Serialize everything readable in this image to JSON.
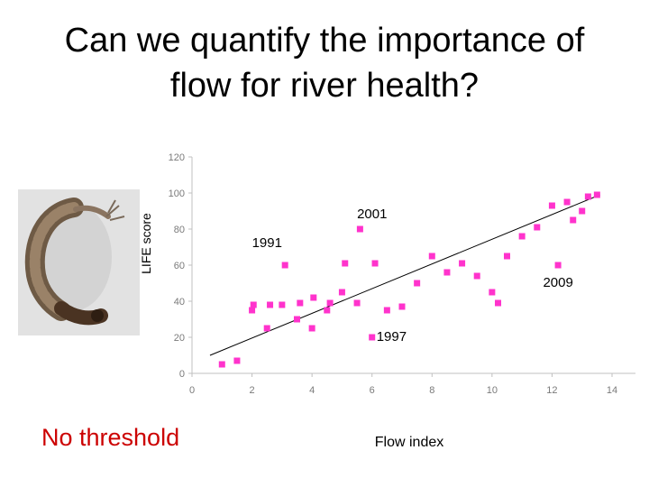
{
  "title": {
    "line1": "Can we quantify the importance of",
    "line2": "flow for river health?"
  },
  "left_caption": "No threshold",
  "colors": {
    "point": "#ff33cc",
    "caption": "#cc0000",
    "axis": "#c0c0c0"
  },
  "chart_data": {
    "type": "scatter",
    "xlabel": "Flow index",
    "ylabel": "LIFE score",
    "xlim": [
      0,
      14
    ],
    "ylim": [
      0,
      120
    ],
    "xticks": [
      0,
      2,
      4,
      6,
      8,
      10,
      12,
      14
    ],
    "yticks": [
      0,
      20,
      40,
      60,
      80,
      100,
      120
    ],
    "grid": false,
    "points": [
      {
        "x": 1.0,
        "y": 5
      },
      {
        "x": 1.5,
        "y": 7
      },
      {
        "x": 2.0,
        "y": 35
      },
      {
        "x": 2.05,
        "y": 38
      },
      {
        "x": 2.5,
        "y": 25
      },
      {
        "x": 2.6,
        "y": 38
      },
      {
        "x": 3.0,
        "y": 38
      },
      {
        "x": 3.1,
        "y": 60
      },
      {
        "x": 3.5,
        "y": 30
      },
      {
        "x": 3.6,
        "y": 39
      },
      {
        "x": 4.0,
        "y": 25
      },
      {
        "x": 4.05,
        "y": 42
      },
      {
        "x": 4.5,
        "y": 35
      },
      {
        "x": 4.6,
        "y": 39
      },
      {
        "x": 5.0,
        "y": 45
      },
      {
        "x": 5.1,
        "y": 61
      },
      {
        "x": 5.5,
        "y": 39
      },
      {
        "x": 5.6,
        "y": 80
      },
      {
        "x": 6.0,
        "y": 20
      },
      {
        "x": 6.1,
        "y": 61
      },
      {
        "x": 6.5,
        "y": 35
      },
      {
        "x": 7.0,
        "y": 37
      },
      {
        "x": 7.5,
        "y": 50
      },
      {
        "x": 8.0,
        "y": 65
      },
      {
        "x": 8.5,
        "y": 56
      },
      {
        "x": 9.0,
        "y": 61
      },
      {
        "x": 9.5,
        "y": 54
      },
      {
        "x": 10.0,
        "y": 45
      },
      {
        "x": 10.2,
        "y": 39
      },
      {
        "x": 10.5,
        "y": 65
      },
      {
        "x": 11.0,
        "y": 76
      },
      {
        "x": 11.5,
        "y": 81
      },
      {
        "x": 12.0,
        "y": 93
      },
      {
        "x": 12.2,
        "y": 60
      },
      {
        "x": 12.5,
        "y": 95
      },
      {
        "x": 12.7,
        "y": 85
      },
      {
        "x": 13.0,
        "y": 90
      },
      {
        "x": 13.2,
        "y": 98
      },
      {
        "x": 13.5,
        "y": 99
      }
    ],
    "trendline": {
      "x": [
        0.6,
        13.6
      ],
      "y": [
        10,
        99
      ]
    },
    "annotations": [
      {
        "text": "2001",
        "x": 5.5,
        "y": 86
      },
      {
        "text": "1991",
        "x": 2.0,
        "y": 70
      },
      {
        "text": "2009",
        "x": 11.7,
        "y": 48
      },
      {
        "text": "1997",
        "x": 6.15,
        "y": 18
      }
    ]
  }
}
